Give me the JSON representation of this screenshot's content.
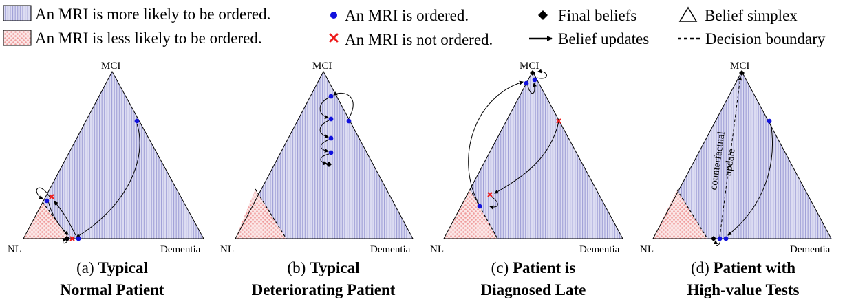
{
  "legend": {
    "more_likely": "An MRI is more likely to be ordered.",
    "less_likely": "An MRI is less likely to be ordered.",
    "ordered": "An MRI is ordered.",
    "not_ordered": "An MRI is not ordered.",
    "final_beliefs": "Final beliefs",
    "belief_updates": "Belief updates",
    "belief_simplex": "Belief simplex",
    "decision_boundary": "Decision boundary"
  },
  "vertices": {
    "top": "MCI",
    "left": "NL",
    "right": "Dementia"
  },
  "panels": [
    {
      "caption_prefix": "(a) ",
      "caption_bold_1": "Typical",
      "caption_bold_2": "Normal Patient"
    },
    {
      "caption_prefix": "(b) ",
      "caption_bold_1": "Typical",
      "caption_bold_2": "Deteriorating Patient"
    },
    {
      "caption_prefix": "(c) ",
      "caption_bold_1": "Patient is",
      "caption_bold_2": "Diagnosed Late"
    },
    {
      "caption_prefix": "(d) ",
      "caption_bold_1": "Patient with",
      "caption_bold_2": "High-value Tests"
    }
  ],
  "annotation": {
    "line1": "counterfactual",
    "line2": "update"
  },
  "colors": {
    "more_likely_fill": "#dcdcf2",
    "more_likely_stripe": "#9f9fd6",
    "less_likely_fill": "#fbe3e3",
    "less_likely_dot": "#ef9c9c",
    "ordered_marker": "#1111dd",
    "not_ordered_marker": "#ee1c1c",
    "final_marker": "#000000"
  }
}
